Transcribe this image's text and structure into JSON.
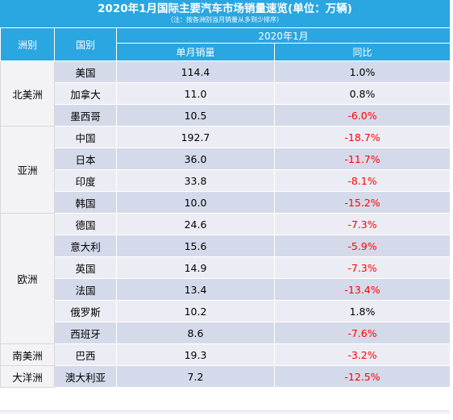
{
  "title": "2020年1月国际主要汽车市场销量速览(单位：万辆)",
  "note": "（注：按各洲别当月销量从多到少排序）",
  "header": {
    "continent": "洲别",
    "country": "国别",
    "period": "2020年1月",
    "sales": "单月销量",
    "yoy": "同比"
  },
  "rows": [
    {
      "continent": "北美洲",
      "country": "美国",
      "sales": "114.4",
      "yoy": "1.0%",
      "neg": false
    },
    {
      "continent": "北美洲",
      "country": "加拿大",
      "sales": "11.0",
      "yoy": "0.8%",
      "neg": false
    },
    {
      "continent": "北美洲",
      "country": "墨西哥",
      "sales": "10.5",
      "yoy": "-6.0%",
      "neg": true
    },
    {
      "continent": "亚洲",
      "country": "中国",
      "sales": "192.7",
      "yoy": "-18.7%",
      "neg": true
    },
    {
      "continent": "亚洲",
      "country": "日本",
      "sales": "36.0",
      "yoy": "-11.7%",
      "neg": true
    },
    {
      "continent": "亚洲",
      "country": "印度",
      "sales": "33.8",
      "yoy": "-8.1%",
      "neg": true
    },
    {
      "continent": "亚洲",
      "country": "韩国",
      "sales": "10.0",
      "yoy": "-15.2%",
      "neg": true
    },
    {
      "continent": "欧洲",
      "country": "德国",
      "sales": "24.6",
      "yoy": "-7.3%",
      "neg": true
    },
    {
      "continent": "欧洲",
      "country": "意大利",
      "sales": "15.6",
      "yoy": "-5.9%",
      "neg": true
    },
    {
      "continent": "欧洲",
      "country": "英国",
      "sales": "14.9",
      "yoy": "-7.3%",
      "neg": true
    },
    {
      "continent": "欧洲",
      "country": "法国",
      "sales": "13.4",
      "yoy": "-13.4%",
      "neg": true
    },
    {
      "continent": "欧洲",
      "country": "俄罗斯",
      "sales": "10.2",
      "yoy": "1.8%",
      "neg": false
    },
    {
      "continent": "欧洲",
      "country": "西班牙",
      "sales": "8.6",
      "yoy": "-7.6%",
      "neg": true
    },
    {
      "continent": "南美洲",
      "country": "巴西",
      "sales": "19.3",
      "yoy": "-3.2%",
      "neg": true
    },
    {
      "continent": "大洋洲",
      "country": "澳大利亚",
      "sales": "7.2",
      "yoy": "-12.5%",
      "neg": true
    }
  ],
  "colors": {
    "header_bg": "#2aa6e0",
    "row_dark": "#d5daea",
    "row_light": "#ecedf4",
    "continent_bg": "#f3f3f5",
    "negative": "#ff0000"
  }
}
